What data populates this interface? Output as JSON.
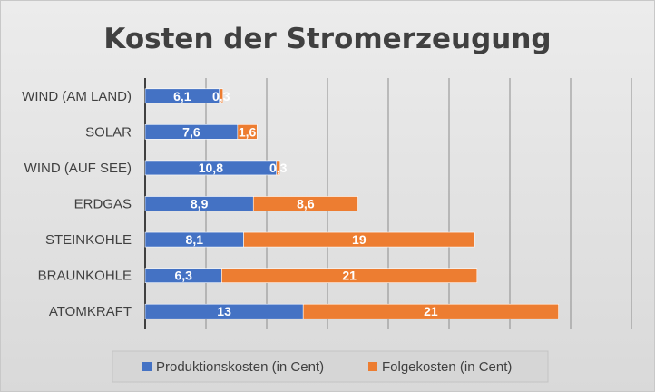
{
  "chart_data": {
    "type": "bar",
    "orientation": "horizontal",
    "stacked": true,
    "title": "Kosten der Stromerzeugung",
    "categories": [
      "WIND (AM LAND)",
      "SOLAR",
      "WIND (AUF SEE)",
      "ERDGAS",
      "STEINKOHLE",
      "BRAUNKOHLE",
      "ATOMKRAFT"
    ],
    "series": [
      {
        "name": "Produktionskosten (in Cent)",
        "color": "#4472c4",
        "values": [
          6.1,
          7.6,
          10.8,
          8.9,
          8.1,
          6.3,
          13
        ],
        "labels": [
          "6,1",
          "7,6",
          "10,8",
          "8,9",
          "8,1",
          "6,3",
          "13"
        ]
      },
      {
        "name": "Folgekosten (in Cent)",
        "color": "#ed7d31",
        "values": [
          0.3,
          1.6,
          0.3,
          8.6,
          19,
          21,
          21
        ],
        "labels": [
          "0,3",
          "1,6",
          "0,3",
          "8,6",
          "19",
          "21",
          "21"
        ]
      }
    ],
    "xlim": [
      0,
      40
    ],
    "x_grid_step": 5,
    "grid": true,
    "legend": "bottom"
  }
}
